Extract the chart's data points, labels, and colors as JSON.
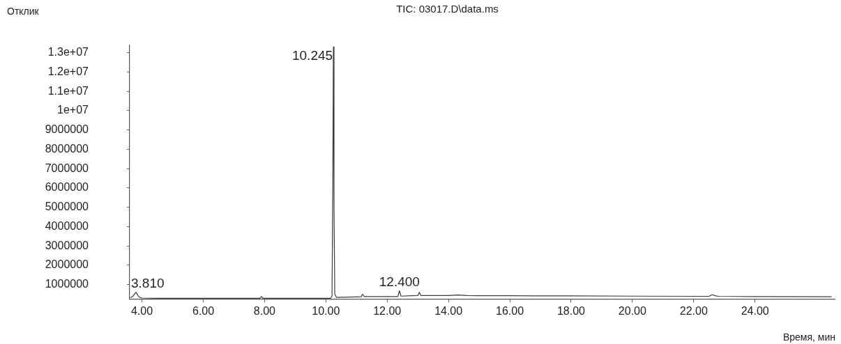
{
  "chart_data": {
    "type": "line",
    "title": "TIC: 03017.D\\data.ms",
    "xlabel": "Время, мин",
    "ylabel": "Отклик",
    "x": [
      3.62,
      3.7,
      3.76,
      3.81,
      3.86,
      3.92,
      4.0,
      4.5,
      5.0,
      6.0,
      7.0,
      7.85,
      7.9,
      7.95,
      9.0,
      10.15,
      10.2,
      10.225,
      10.245,
      10.265,
      10.29,
      10.35,
      10.5,
      11.0,
      11.15,
      11.2,
      11.25,
      11.8,
      12.0,
      12.35,
      12.4,
      12.45,
      12.8,
      13.0,
      13.05,
      13.1,
      13.3,
      14.0,
      14.3,
      14.6,
      15.0,
      16.0,
      18.0,
      20.0,
      22.0,
      22.5,
      22.6,
      22.7,
      22.8,
      24.0,
      26.5
    ],
    "values": [
      320000,
      380000,
      520000,
      600000,
      450000,
      340000,
      300000,
      290000,
      290000,
      290000,
      290000,
      290000,
      380000,
      290000,
      290000,
      290000,
      400000,
      6000000,
      13300000,
      5000000,
      500000,
      330000,
      340000,
      360000,
      370000,
      500000,
      380000,
      380000,
      380000,
      380000,
      680000,
      400000,
      420000,
      430000,
      600000,
      430000,
      430000,
      430000,
      460000,
      430000,
      420000,
      420000,
      410000,
      400000,
      390000,
      390000,
      470000,
      420000,
      390000,
      380000,
      370000
    ],
    "color": "#3a3a3a",
    "xlim": [
      3.6,
      26.6
    ],
    "xticks": [
      {
        "value": 4,
        "label": "4.00"
      },
      {
        "value": 6,
        "label": "6.00"
      },
      {
        "value": 8,
        "label": "8.00"
      },
      {
        "value": 10,
        "label": "10.00"
      },
      {
        "value": 12,
        "label": "12.00"
      },
      {
        "value": 14,
        "label": "14.00"
      },
      {
        "value": 16,
        "label": "16.00"
      },
      {
        "value": 18,
        "label": "18.00"
      },
      {
        "value": 20,
        "label": "20.00"
      },
      {
        "value": 22,
        "label": "22.00"
      },
      {
        "value": 24,
        "label": "24.00"
      }
    ],
    "ylim": [
      250000,
      13400000
    ],
    "yticks": [
      1000000,
      2000000,
      3000000,
      4000000,
      5000000,
      6000000,
      7000000,
      8000000,
      9000000,
      {
        "value": 10000000,
        "label": "1e+07"
      },
      {
        "value": 11000000,
        "label": "1.1e+07"
      },
      {
        "value": 12000000,
        "label": "1.2e+07"
      },
      {
        "value": 13000000,
        "label": "1.3e+07"
      }
    ],
    "annotations": [
      {
        "text": "3.810",
        "x": 3.81,
        "y": 600000
      },
      {
        "text": "10.245",
        "x": 10.245,
        "y": 13300000
      },
      {
        "text": "12.400",
        "x": 12.4,
        "y": 680000
      }
    ],
    "grid": false,
    "legend": false,
    "marker": "none",
    "line_style": "solid"
  }
}
